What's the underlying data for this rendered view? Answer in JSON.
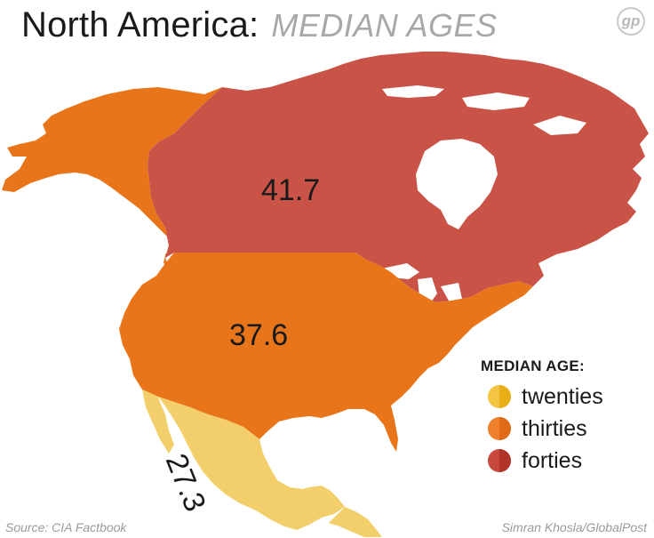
{
  "title": "North America:",
  "subtitle": "MEDIAN AGES",
  "logo_text": "gp",
  "regions": [
    {
      "name": "Canada",
      "value": "41.7",
      "category": "forties"
    },
    {
      "name": "United States",
      "value": "37.6",
      "category": "thirties"
    },
    {
      "name": "Mexico",
      "value": "27.3",
      "category": "twenties"
    }
  ],
  "legend": {
    "title": "MEDIAN AGE:",
    "items": [
      {
        "label": "twenties",
        "color": "#f4c542",
        "shade": "#e9ad16"
      },
      {
        "label": "thirties",
        "color": "#ee7f2d",
        "shade": "#e06a16"
      },
      {
        "label": "forties",
        "color": "#c9483e",
        "shade": "#b13325"
      }
    ]
  },
  "colors": {
    "canada": "#c95346",
    "usa": "#e8751a",
    "mexico": "#f3cf6b",
    "alaska": "#e8751a",
    "water": "#ffffff"
  },
  "footer": {
    "source": "Source: CIA Factbook",
    "credit": "Simran Khosla/GlobalPost"
  }
}
